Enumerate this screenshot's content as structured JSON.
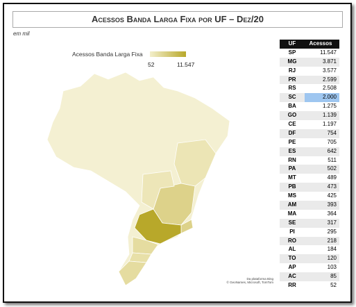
{
  "header": {
    "title": "Acessos Banda Larga Fixa por UF – Dez/20"
  },
  "unit_note": "em mil",
  "legend": {
    "title": "Acessos Banda Larga Fixa",
    "min": "52",
    "max": "11.547"
  },
  "table": {
    "columns": [
      "UF",
      "Acessos"
    ],
    "rows": [
      [
        "SP",
        "11.547"
      ],
      [
        "MG",
        "3.871"
      ],
      [
        "RJ",
        "3.577"
      ],
      [
        "PR",
        "2.599"
      ],
      [
        "RS",
        "2.508"
      ],
      [
        "SC",
        "2.000"
      ],
      [
        "BA",
        "1.275"
      ],
      [
        "GO",
        "1.139"
      ],
      [
        "CE",
        "1.197"
      ],
      [
        "DF",
        "754"
      ],
      [
        "PE",
        "705"
      ],
      [
        "ES",
        "642"
      ],
      [
        "RN",
        "511"
      ],
      [
        "PA",
        "502"
      ],
      [
        "MT",
        "489"
      ],
      [
        "PB",
        "473"
      ],
      [
        "MS",
        "425"
      ],
      [
        "AM",
        "393"
      ],
      [
        "MA",
        "364"
      ],
      [
        "SE",
        "317"
      ],
      [
        "PI",
        "295"
      ],
      [
        "RO",
        "218"
      ],
      [
        "AL",
        "184"
      ],
      [
        "TO",
        "120"
      ],
      [
        "AP",
        "103"
      ],
      [
        "AC",
        "85"
      ],
      [
        "RR",
        "52"
      ]
    ]
  },
  "attribution": [
    "Da plataforma Bing",
    "© GeoNames, Microsoft, TomTom"
  ]
}
